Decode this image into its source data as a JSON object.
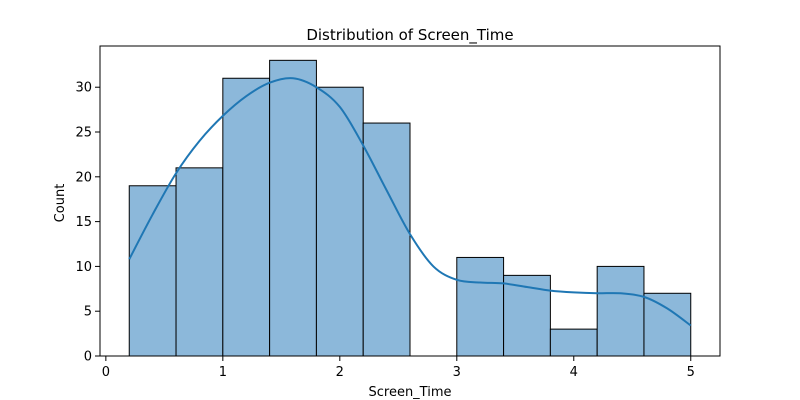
{
  "chart_data": {
    "type": "histogram",
    "title": "Distribution of Screen_Time",
    "xlabel": "Screen_Time",
    "ylabel": "Count",
    "xlim": [
      -0.05,
      5.25
    ],
    "ylim": [
      0,
      34.6
    ],
    "x_ticks": [
      0,
      1,
      2,
      3,
      4,
      5
    ],
    "y_ticks": [
      0,
      5,
      10,
      15,
      20,
      25,
      30
    ],
    "bins": [
      {
        "start": 0.2,
        "end": 0.6,
        "count": 19
      },
      {
        "start": 0.6,
        "end": 1.0,
        "count": 21
      },
      {
        "start": 1.0,
        "end": 1.4,
        "count": 31
      },
      {
        "start": 1.4,
        "end": 1.8,
        "count": 33
      },
      {
        "start": 1.8,
        "end": 2.2,
        "count": 30
      },
      {
        "start": 2.2,
        "end": 2.6,
        "count": 26
      },
      {
        "start": 2.6,
        "end": 3.0,
        "count": 0
      },
      {
        "start": 3.0,
        "end": 3.4,
        "count": 11
      },
      {
        "start": 3.4,
        "end": 3.8,
        "count": 9
      },
      {
        "start": 3.8,
        "end": 4.2,
        "count": 3
      },
      {
        "start": 4.2,
        "end": 4.6,
        "count": 10
      },
      {
        "start": 4.6,
        "end": 5.0,
        "count": 7
      }
    ],
    "kde": {
      "x": [
        0.2,
        0.4,
        0.6,
        0.8,
        1.0,
        1.2,
        1.4,
        1.6,
        1.8,
        2.0,
        2.2,
        2.4,
        2.6,
        2.8,
        3.0,
        3.2,
        3.4,
        3.6,
        3.8,
        4.0,
        4.2,
        4.4,
        4.6,
        4.8,
        5.0
      ],
      "y": [
        10.8,
        15.8,
        20.4,
        24.0,
        26.8,
        29.0,
        30.5,
        31.0,
        30.0,
        27.8,
        23.5,
        18.5,
        13.6,
        10.0,
        8.5,
        8.2,
        8.1,
        7.7,
        7.3,
        7.1,
        7.0,
        7.0,
        6.6,
        5.3,
        3.4
      ]
    },
    "grid": false,
    "legend": "none",
    "colors": {
      "bar_fill": "#8cb8da",
      "bar_edge": "#000000",
      "kde_line": "#1f77b4"
    }
  }
}
